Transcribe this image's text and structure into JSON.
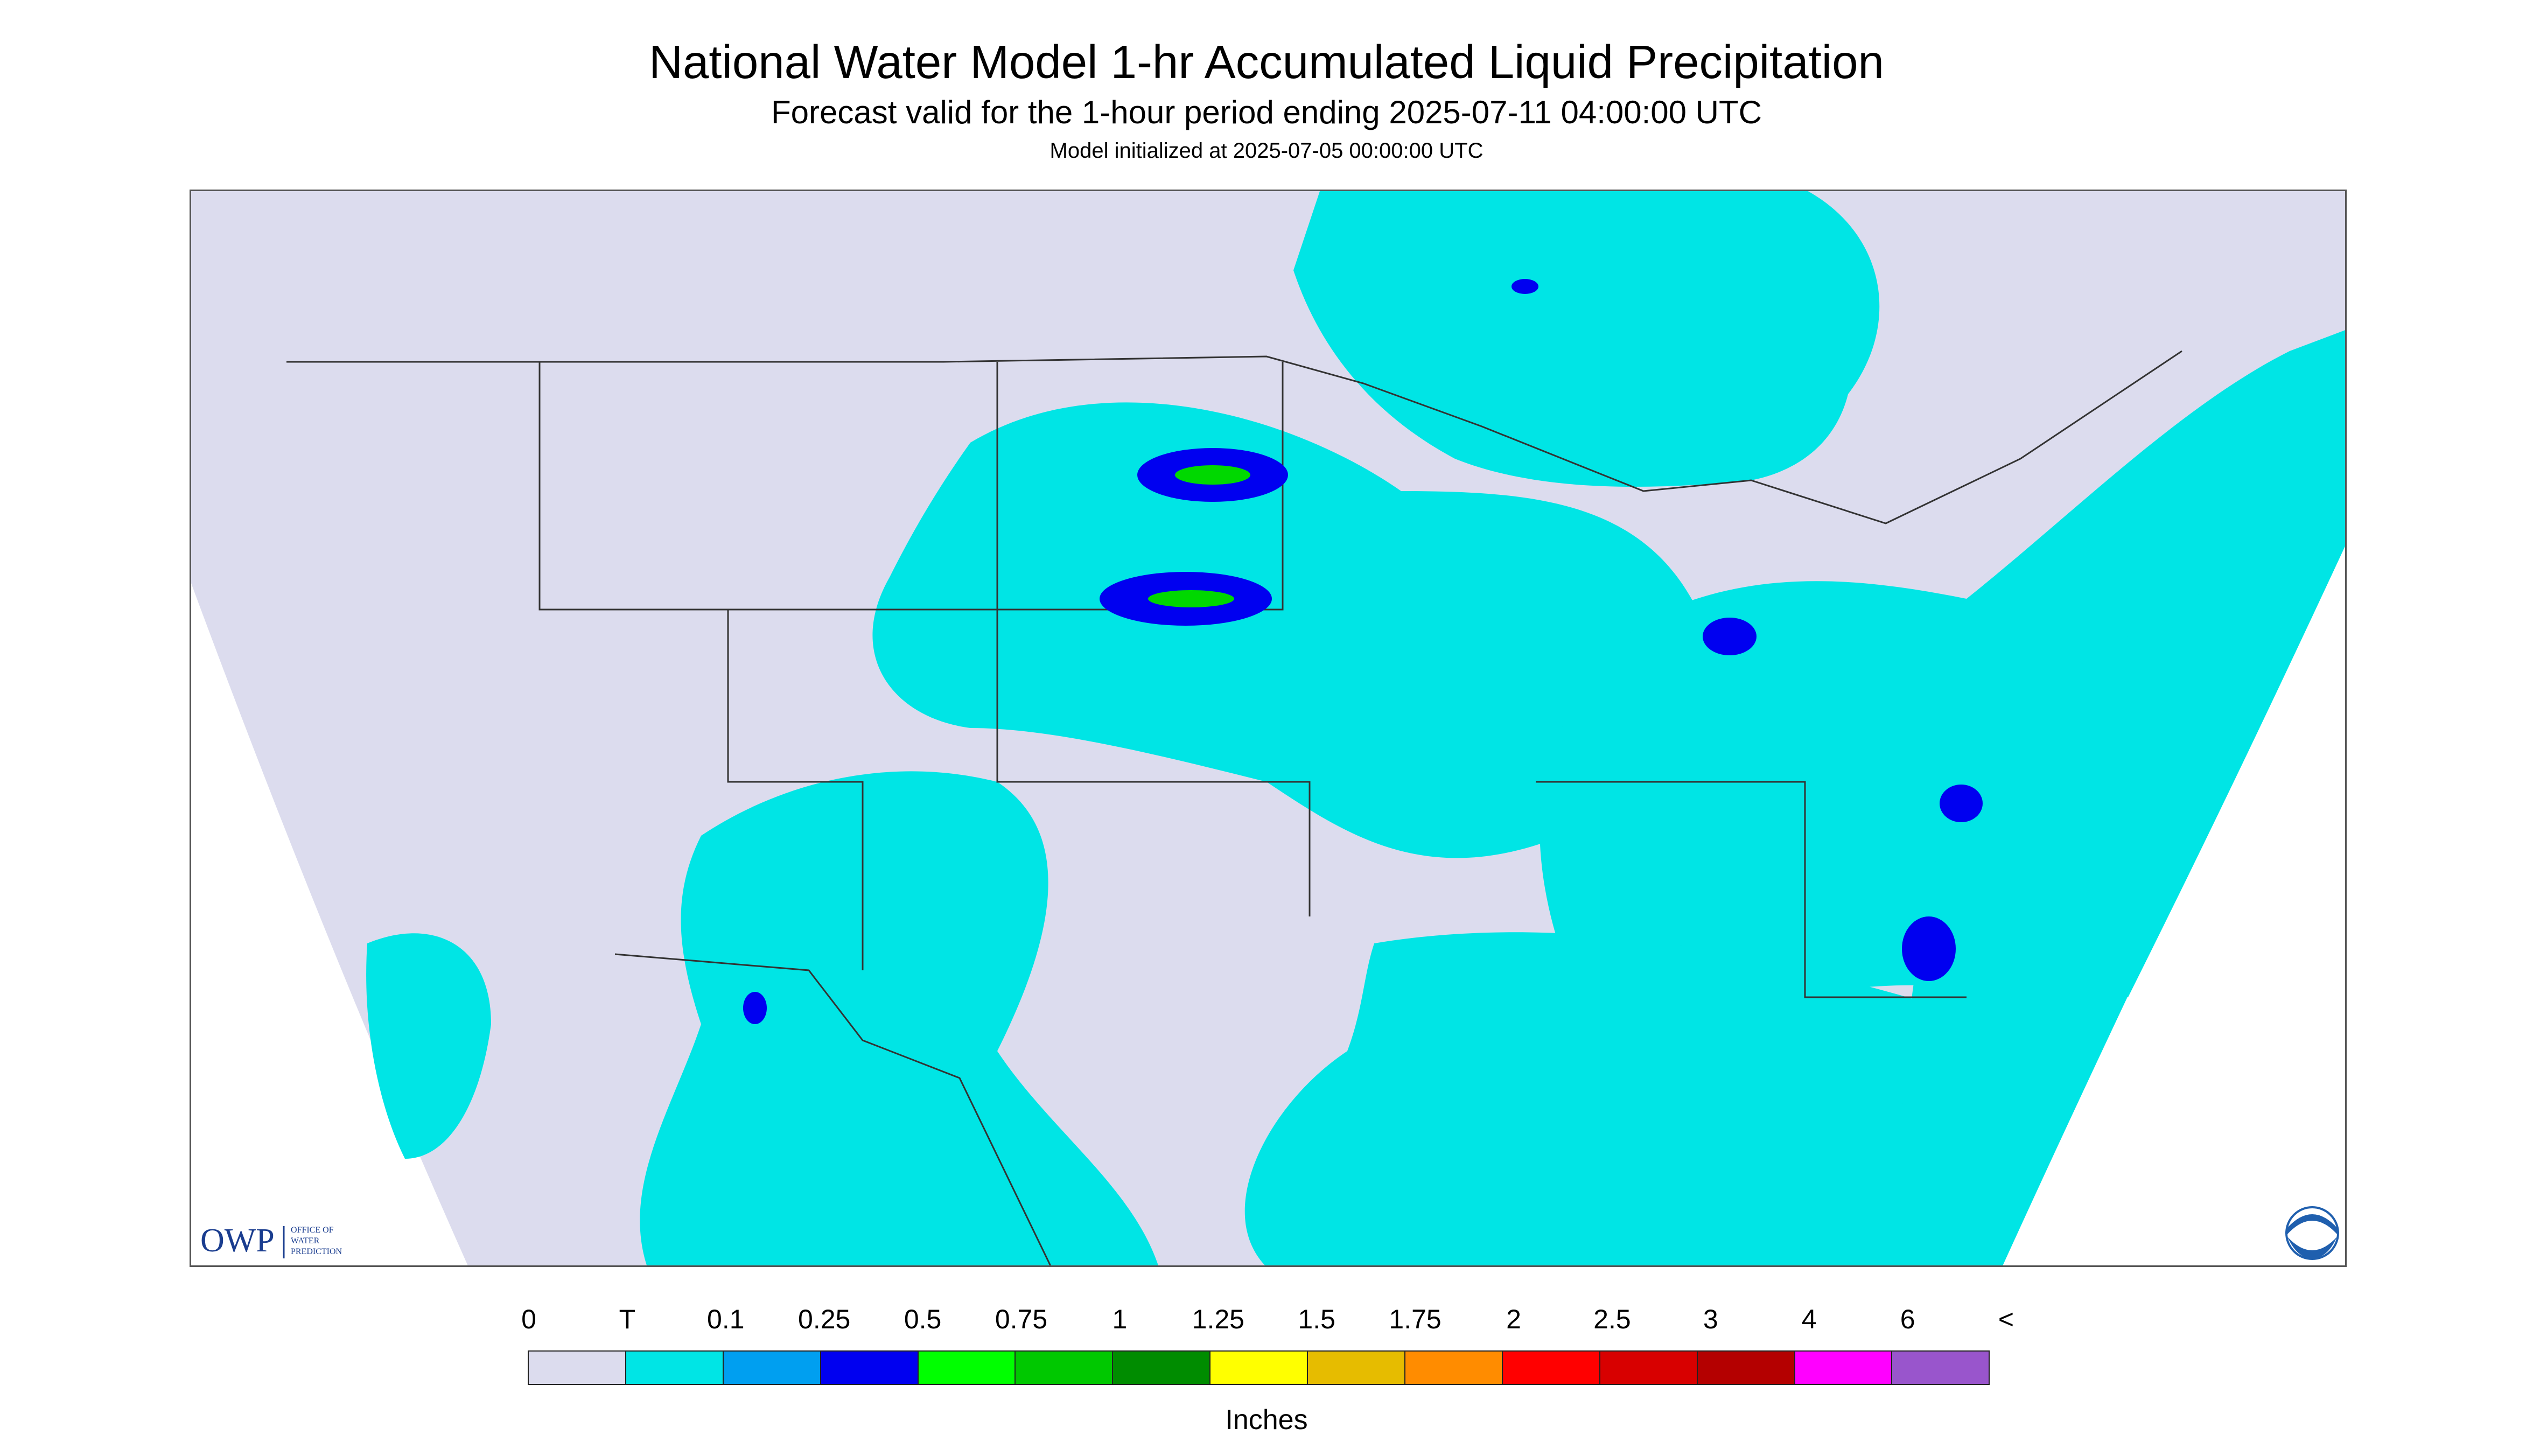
{
  "header": {
    "title": "National Water Model 1-hr Accumulated Liquid Precipitation",
    "subtitle": "Forecast valid for the 1-hour period ending 2025-07-11 04:00:00 UTC",
    "init_note": "Model initialized at 2025-07-05 00:00:00 UTC"
  },
  "map": {
    "background_color": "#ffffff",
    "nodata_color": "#ffffff",
    "land_color": "#dcdcee",
    "precip_trace_color": "#00e5e5",
    "precip_0_25_color": "#0000f0",
    "precip_0_75_color": "#00d800",
    "boundary_color": "#333333"
  },
  "logos": {
    "owp_mark": "OWP",
    "owp_text_lines": [
      "OFFICE OF",
      "WATER",
      "PREDICTION"
    ],
    "noaa_text": "NOAA",
    "noaa_icon": "noaa-logo-icon"
  },
  "legend": {
    "labels": [
      "0",
      "T",
      "0.1",
      "0.25",
      "0.5",
      "0.75",
      "1",
      "1.25",
      "1.5",
      "1.75",
      "2",
      "2.5",
      "3",
      "4",
      "6",
      "<"
    ],
    "colors": [
      "#dcdcee",
      "#00e5e5",
      "#009ff0",
      "#0000f0",
      "#00ff00",
      "#00c800",
      "#008c00",
      "#ffff00",
      "#e6bc00",
      "#ff8c00",
      "#ff0000",
      "#d80000",
      "#b40000",
      "#ff00ff",
      "#9955cc"
    ],
    "units": "Inches"
  }
}
